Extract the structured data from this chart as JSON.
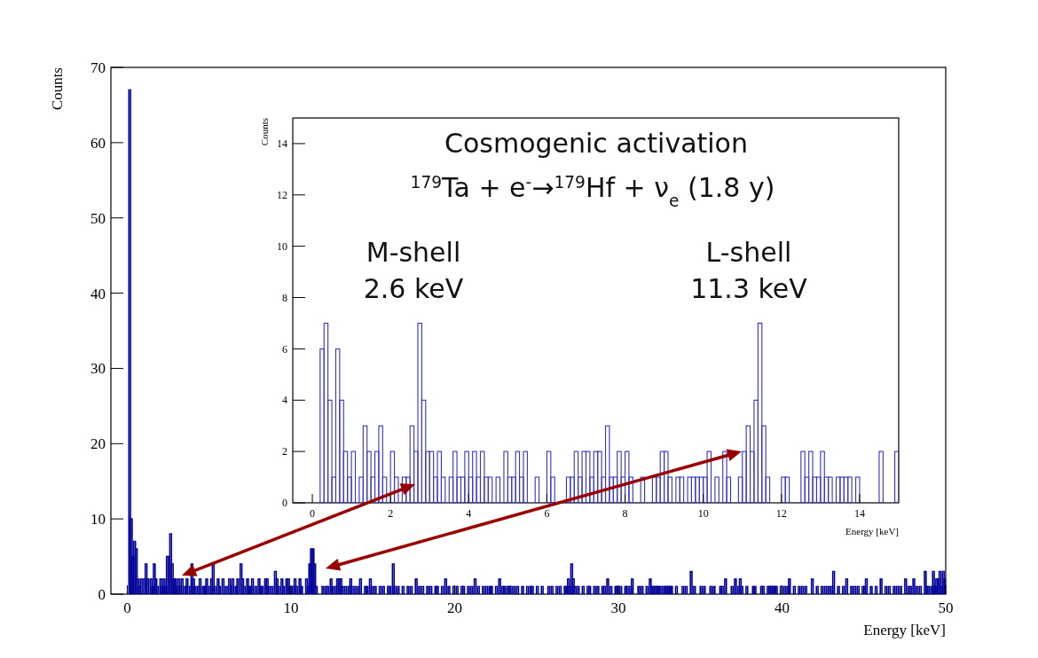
{
  "chart_data": [
    {
      "type": "histogram",
      "xlabel": "Energy [keV]",
      "ylabel": "Counts",
      "xlim": [
        -1,
        50
      ],
      "ylim": [
        0,
        70
      ],
      "xticks": [
        0,
        10,
        20,
        30,
        40,
        50
      ],
      "yticks": [
        0,
        10,
        20,
        30,
        40,
        50,
        60,
        70
      ],
      "color": "#000099",
      "bins": [
        0,
        0.1,
        0.2,
        0.3,
        0.4,
        0.5,
        0.6,
        0.7,
        0.8,
        0.9,
        1,
        1.1,
        1.2,
        1.3,
        1.4,
        1.5,
        1.6,
        1.7,
        1.8,
        1.9,
        2,
        2.1,
        2.2,
        2.3,
        2.4,
        2.5,
        2.6,
        2.7,
        2.8,
        2.9,
        3,
        3.1,
        3.2,
        3.3,
        3.4,
        3.5,
        3.6,
        3.7,
        3.8,
        3.9,
        4,
        4.1,
        4.2,
        4.3,
        4.4,
        4.5,
        4.6,
        4.7,
        4.8,
        4.9,
        5,
        5.1,
        5.2,
        5.3,
        5.4,
        5.5,
        5.6,
        5.7,
        5.8,
        5.9,
        6,
        6.1,
        6.2,
        6.3,
        6.4,
        6.5,
        6.6,
        6.7,
        6.8,
        6.9,
        7,
        7.1,
        7.2,
        7.3,
        7.4,
        7.5,
        7.6,
        7.7,
        7.8,
        7.9,
        8,
        8.1,
        8.2,
        8.3,
        8.4,
        8.5,
        8.6,
        8.7,
        8.8,
        8.9,
        9,
        9.1,
        9.2,
        9.3,
        9.4,
        9.5,
        9.6,
        9.7,
        9.8,
        9.9,
        10,
        10.1,
        10.2,
        10.3,
        10.4,
        10.5,
        10.6,
        10.7,
        10.8,
        10.9,
        11,
        11.1,
        11.2,
        11.3,
        11.4,
        11.5,
        11.6,
        11.7,
        11.8,
        11.9,
        12,
        12.1,
        12.2,
        12.3,
        12.4,
        12.5,
        12.6,
        12.7,
        12.8,
        12.9,
        13,
        13.1,
        13.2,
        13.3,
        13.4,
        13.5,
        13.6,
        13.7,
        13.8,
        13.9,
        14,
        14.1,
        14.2,
        14.3,
        14.4,
        14.5,
        14.6,
        14.7,
        14.8,
        14.9,
        15,
        15.1,
        15.2,
        15.3,
        15.4,
        15.5,
        15.6,
        15.7,
        15.8,
        15.9,
        16,
        16.1,
        16.2,
        16.3,
        16.4,
        16.5,
        16.6,
        16.7,
        16.8,
        16.9,
        17,
        17.1,
        17.2,
        17.3,
        17.4,
        17.5,
        17.6,
        17.7,
        17.8,
        17.9,
        18,
        18.1,
        18.2,
        18.3,
        18.4,
        18.5,
        18.6,
        18.7,
        18.8,
        18.9,
        19,
        19.1,
        19.2,
        19.3,
        19.4,
        19.5,
        19.6,
        19.7,
        19.8,
        19.9,
        20,
        20.1,
        20.2,
        20.3,
        20.4,
        20.5,
        20.6,
        20.7,
        20.8,
        20.9,
        21,
        21.1,
        21.2,
        21.3,
        21.4,
        21.5,
        21.6,
        21.7,
        21.8,
        21.9,
        22,
        22.1,
        22.2,
        22.3,
        22.4,
        22.5,
        22.6,
        22.7,
        22.8,
        22.9,
        23,
        23.1,
        23.2,
        23.3,
        23.4,
        23.5,
        23.6,
        23.7,
        23.8,
        23.9,
        24,
        24.1,
        24.2,
        24.3,
        24.4,
        24.5,
        24.6,
        24.7,
        24.8,
        24.9,
        25,
        25.1,
        25.2,
        25.3,
        25.4,
        25.5,
        25.6,
        25.7,
        25.8,
        25.9,
        26,
        26.1,
        26.2,
        26.3,
        26.4,
        26.5,
        26.6,
        26.7,
        26.8,
        26.9,
        27,
        27.1,
        27.2,
        27.3,
        27.4,
        27.5,
        27.6,
        27.7,
        27.8,
        27.9,
        28,
        28.1,
        28.2,
        28.3,
        28.4,
        28.5,
        28.6,
        28.7,
        28.8,
        28.9,
        29,
        29.1,
        29.2,
        29.3,
        29.4,
        29.5,
        29.6,
        29.7,
        29.8,
        29.9,
        30,
        30.1,
        30.2,
        30.3,
        30.4,
        30.5,
        30.6,
        30.7,
        30.8,
        30.9,
        31,
        31.1,
        31.2,
        31.3,
        31.4,
        31.5,
        31.6,
        31.7,
        31.8,
        31.9,
        32,
        32.1,
        32.2,
        32.3,
        32.4,
        32.5,
        32.6,
        32.7,
        32.8,
        32.9,
        33,
        33.1,
        33.2,
        33.3,
        33.4,
        33.5,
        33.6,
        33.7,
        33.8,
        33.9,
        34,
        34.1,
        34.2,
        34.3,
        34.4,
        34.5,
        34.6,
        34.7,
        34.8,
        34.9,
        35,
        35.1,
        35.2,
        35.3,
        35.4,
        35.5,
        35.6,
        35.7,
        35.8,
        35.9,
        36,
        36.1,
        36.2,
        36.3,
        36.4,
        36.5,
        36.6,
        36.7,
        36.8,
        36.9,
        37,
        37.1,
        37.2,
        37.3,
        37.4,
        37.5,
        37.6,
        37.7,
        37.8,
        37.9,
        38,
        38.1,
        38.2,
        38.3,
        38.4,
        38.5,
        38.6,
        38.7,
        38.8,
        38.9,
        39,
        39.1,
        39.2,
        39.3,
        39.4,
        39.5,
        39.6,
        39.7,
        39.8,
        39.9,
        40,
        40.1,
        40.2,
        40.3,
        40.4,
        40.5,
        40.6,
        40.7,
        40.8,
        40.9,
        41,
        41.1,
        41.2,
        41.3,
        41.4,
        41.5,
        41.6,
        41.7,
        41.8,
        41.9,
        42,
        42.1,
        42.2,
        42.3,
        42.4,
        42.5,
        42.6,
        42.7,
        42.8,
        42.9,
        43,
        43.1,
        43.2,
        43.3,
        43.4,
        43.5,
        43.6,
        43.7,
        43.8,
        43.9,
        44,
        44.1,
        44.2,
        44.3,
        44.4,
        44.5,
        44.6,
        44.7,
        44.8,
        44.9,
        45,
        45.1,
        45.2,
        45.3,
        45.4,
        45.5,
        45.6,
        45.7,
        45.8,
        45.9,
        46,
        46.1,
        46.2,
        46.3,
        46.4,
        46.5,
        46.6,
        46.7,
        46.8,
        46.9,
        47,
        47.1,
        47.2,
        47.3,
        47.4,
        47.5,
        47.6,
        47.7,
        47.8,
        47.9,
        48,
        48.1,
        48.2,
        48.3,
        48.4,
        48.5,
        48.6,
        48.7,
        48.8,
        48.9,
        49,
        49.1,
        49.2,
        49.3,
        49.4,
        49.5,
        49.6,
        49.7,
        49.8,
        49.9,
        50
      ],
      "values": [
        0,
        67,
        10,
        5,
        7,
        6,
        2,
        1,
        2,
        0,
        2,
        4,
        2,
        0,
        2,
        1,
        4,
        2,
        1,
        0,
        2,
        1,
        2,
        1,
        5,
        5,
        8,
        4,
        2,
        2,
        1,
        2,
        1,
        2,
        0,
        1,
        2,
        0,
        1,
        4,
        2,
        1,
        0,
        1,
        2,
        0,
        1,
        1,
        2,
        0,
        1,
        2,
        4,
        1,
        0,
        2,
        1,
        0,
        2,
        0,
        1,
        0,
        2,
        1,
        2,
        0,
        1,
        2,
        0,
        4,
        2,
        1,
        0,
        2,
        1,
        1,
        2,
        0,
        1,
        0,
        2,
        1,
        1,
        0,
        2,
        2,
        1,
        0,
        1,
        0,
        3,
        2,
        1,
        0,
        2,
        1,
        0,
        2,
        2,
        1,
        0,
        1,
        2,
        1,
        0,
        2,
        1,
        0,
        0,
        2,
        1,
        4,
        6,
        6,
        4,
        1,
        0,
        0,
        0,
        1,
        0,
        1,
        1,
        0,
        2,
        1,
        0,
        1,
        2,
        2,
        2,
        1,
        0,
        1,
        0,
        1,
        2,
        1,
        0,
        1,
        0,
        1,
        2,
        0,
        0,
        1,
        1,
        0,
        2,
        1,
        0,
        1,
        0,
        0,
        1,
        0,
        1,
        0,
        0,
        1,
        1,
        0,
        4,
        1,
        0,
        1,
        0,
        0,
        1,
        0,
        0,
        1,
        0,
        1,
        0,
        0,
        2,
        0,
        1,
        0,
        1,
        0,
        0,
        1,
        0,
        1,
        0,
        0,
        1,
        1,
        0,
        0,
        1,
        0,
        2,
        0,
        1,
        0,
        0,
        1,
        0,
        1,
        0,
        0,
        1,
        1,
        0,
        0,
        1,
        0,
        1,
        0,
        2,
        0,
        1,
        0,
        0,
        1,
        0,
        1,
        0,
        1,
        1,
        0,
        0,
        1,
        0,
        2,
        0,
        1,
        1,
        0,
        1,
        1,
        1,
        0,
        1,
        0,
        1,
        0,
        0,
        1,
        0,
        0,
        1,
        0,
        1,
        1,
        0,
        0,
        1,
        0,
        0,
        1,
        0,
        0,
        0,
        1,
        0,
        1,
        0,
        0,
        1,
        0,
        1,
        0,
        0,
        1,
        1,
        2,
        1,
        4,
        2,
        1,
        0,
        1,
        0,
        0,
        1,
        0,
        0,
        1,
        1,
        0,
        0,
        1,
        0,
        1,
        0,
        0,
        1,
        1,
        0,
        2,
        0,
        1,
        0,
        0,
        1,
        1,
        0,
        1,
        0,
        0,
        1,
        1,
        0,
        1,
        2,
        0,
        0,
        0,
        1,
        0,
        1,
        0,
        0,
        1,
        0,
        2,
        1,
        1,
        1,
        1,
        1,
        1,
        0,
        1,
        1,
        1,
        1,
        1,
        1,
        0,
        0,
        1,
        0,
        0,
        0,
        1,
        0,
        1,
        0,
        0,
        3,
        0,
        1,
        0,
        0,
        0,
        1,
        0,
        1,
        0,
        0,
        0,
        1,
        0,
        1,
        0,
        0,
        0,
        1,
        1,
        0,
        2,
        0,
        0,
        0,
        1,
        0,
        2,
        0,
        1,
        2,
        1,
        0,
        0,
        1,
        0,
        0,
        0,
        1,
        1,
        0,
        0,
        0,
        1,
        1,
        0,
        0,
        1,
        1,
        1,
        1,
        1,
        1,
        0,
        0,
        1,
        0,
        1,
        0,
        1,
        2,
        0,
        0,
        1,
        0,
        0,
        1,
        0,
        1,
        0,
        1,
        0,
        0,
        0,
        2,
        0,
        0,
        1,
        0,
        0,
        1,
        0,
        1,
        0,
        1,
        0,
        1,
        3,
        0,
        0,
        1,
        0,
        0,
        1,
        0,
        2,
        0,
        0,
        1,
        0,
        1,
        0,
        1,
        0,
        0,
        1,
        1,
        2,
        0,
        0,
        1,
        0,
        0,
        1,
        0,
        0,
        2,
        0,
        0,
        1,
        0,
        1,
        0,
        0,
        1,
        0,
        1,
        0,
        1,
        0,
        0,
        2,
        0,
        1,
        1,
        0,
        2,
        0,
        1,
        0,
        1,
        0,
        0,
        3,
        1,
        1,
        0,
        1,
        3,
        1,
        2,
        2,
        3,
        1,
        3,
        2
      ]
    },
    {
      "type": "histogram",
      "xlabel": "Energy [keV]",
      "ylabel": "Counts",
      "xlim": [
        -0.5,
        15
      ],
      "ylim": [
        0,
        15
      ],
      "xticks": [
        0,
        2,
        4,
        6,
        8,
        10,
        12,
        14
      ],
      "yticks": [
        0,
        2,
        4,
        6,
        8,
        10,
        12,
        14
      ],
      "color": "#3333cc",
      "annotations": [
        "Cosmogenic activation",
        "$^{179}$Ta + e$^{-}$→$^{179}$Hf + ν$_{e}$  (1.8 y)",
        "M-shell\n2.6 keV",
        "L-shell\n11.3 keV"
      ],
      "bins": [
        0,
        0.1,
        0.2,
        0.3,
        0.4,
        0.5,
        0.6,
        0.7,
        0.8,
        0.9,
        1,
        1.1,
        1.2,
        1.3,
        1.4,
        1.5,
        1.6,
        1.7,
        1.8,
        1.9,
        2,
        2.1,
        2.2,
        2.3,
        2.4,
        2.5,
        2.6,
        2.7,
        2.8,
        2.9,
        3,
        3.1,
        3.2,
        3.3,
        3.4,
        3.5,
        3.6,
        3.7,
        3.8,
        3.9,
        4,
        4.1,
        4.2,
        4.3,
        4.4,
        4.5,
        4.6,
        4.7,
        4.8,
        4.9,
        5,
        5.1,
        5.2,
        5.3,
        5.4,
        5.5,
        5.6,
        5.7,
        5.8,
        5.9,
        6,
        6.1,
        6.2,
        6.3,
        6.4,
        6.5,
        6.6,
        6.7,
        6.8,
        6.9,
        7,
        7.1,
        7.2,
        7.3,
        7.4,
        7.5,
        7.6,
        7.7,
        7.8,
        7.9,
        8,
        8.1,
        8.2,
        8.3,
        8.4,
        8.5,
        8.6,
        8.7,
        8.8,
        8.9,
        9,
        9.1,
        9.2,
        9.3,
        9.4,
        9.5,
        9.6,
        9.7,
        9.8,
        9.9,
        10,
        10.1,
        10.2,
        10.3,
        10.4,
        10.5,
        10.6,
        10.7,
        10.8,
        10.9,
        11,
        11.1,
        11.2,
        11.3,
        11.4,
        11.5,
        11.6,
        11.7,
        11.8,
        11.9,
        12,
        12.1,
        12.2,
        12.3,
        12.4,
        12.5,
        12.6,
        12.7,
        12.8,
        12.9,
        13,
        13.1,
        13.2,
        13.3,
        13.4,
        13.5,
        13.6,
        13.7,
        13.8,
        13.9,
        14,
        14.1,
        14.2,
        14.3,
        14.4,
        14.5,
        14.6,
        14.7,
        14.8,
        14.9,
        15
      ],
      "values": [
        0,
        null,
        6,
        7,
        4,
        1,
        6,
        4,
        2,
        1,
        2,
        0,
        1,
        3,
        2,
        1,
        2,
        3,
        1,
        0,
        2,
        1,
        0,
        1,
        1,
        3,
        2,
        7,
        4,
        2,
        2,
        1,
        2,
        1,
        0,
        1,
        2,
        1,
        1,
        2,
        1,
        2,
        1,
        2,
        1,
        1,
        0,
        1,
        0,
        2,
        1,
        1,
        2,
        1,
        2,
        0,
        0,
        1,
        0,
        0,
        2,
        1,
        0,
        0,
        0,
        1,
        1,
        2,
        1,
        2,
        2,
        1,
        2,
        2,
        1,
        3,
        1,
        1,
        2,
        1,
        2,
        1,
        0,
        0,
        1,
        0,
        0,
        1,
        1,
        2,
        2,
        1,
        0,
        1,
        1,
        0,
        1,
        1,
        1,
        1,
        1,
        2,
        0,
        1,
        0,
        2,
        1,
        0,
        0,
        1,
        2,
        3,
        2,
        4,
        7,
        3,
        1,
        0,
        0,
        0,
        1,
        1,
        0,
        0,
        0,
        2,
        1,
        2,
        1,
        1,
        2,
        1,
        1,
        0,
        1,
        1,
        1,
        1,
        0,
        1,
        0,
        0,
        0,
        0,
        0,
        2,
        0,
        0,
        0,
        2
      ]
    }
  ]
}
